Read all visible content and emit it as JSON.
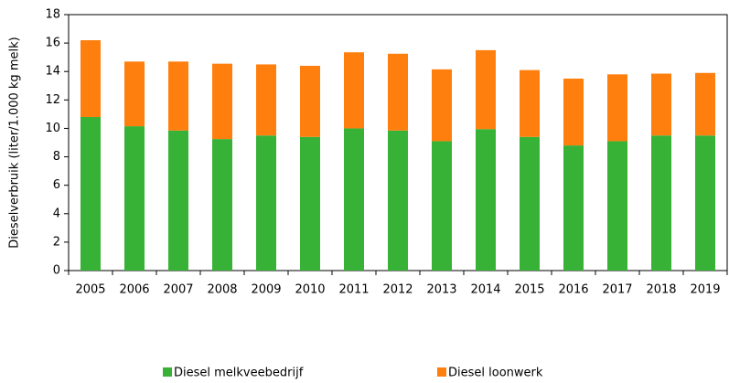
{
  "chart_data": {
    "type": "stacked_bar",
    "y_label": "Dieselverbruik (liter/1.000 kg melk)",
    "categories": [
      "2005",
      "2006",
      "2007",
      "2008",
      "2009",
      "2010",
      "2011",
      "2012",
      "2013",
      "2014",
      "2015",
      "2016",
      "2017",
      "2018",
      "2019"
    ],
    "series": [
      {
        "name": "Diesel melkveebedrijf",
        "color": "#37b236",
        "values": [
          10.8,
          10.15,
          9.85,
          9.25,
          9.5,
          9.4,
          10.0,
          9.85,
          9.1,
          9.95,
          9.4,
          8.8,
          9.1,
          9.5,
          9.5
        ]
      },
      {
        "name": "Diesel loonwerk",
        "color": "#ff7f0e",
        "values": [
          5.4,
          4.55,
          4.85,
          5.3,
          5.0,
          5.0,
          5.35,
          5.4,
          5.05,
          5.55,
          4.7,
          4.7,
          4.7,
          4.35,
          4.4
        ]
      }
    ],
    "ylim": [
      0,
      18
    ],
    "yticks": [
      0,
      2,
      4,
      6,
      8,
      10,
      12,
      14,
      16,
      18
    ],
    "legend": "bottom"
  }
}
